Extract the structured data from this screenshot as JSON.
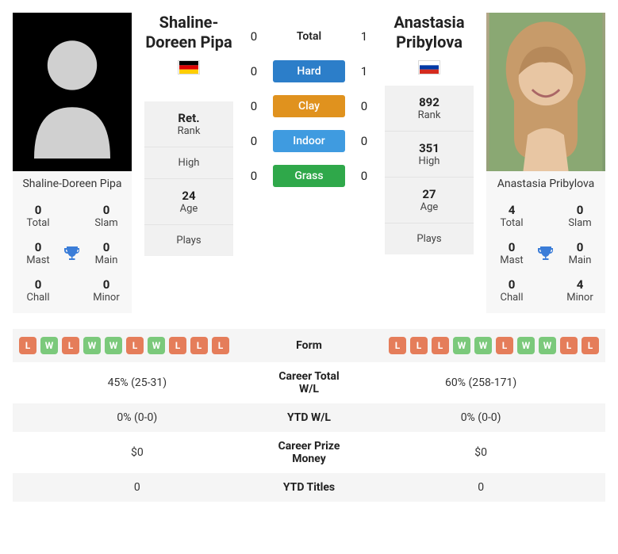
{
  "p1": {
    "name": "Shaline-Doreen Pipa",
    "flag_colors": [
      "#000000",
      "#dd0000",
      "#ffce00"
    ],
    "titles": {
      "total": {
        "v": "0",
        "l": "Total"
      },
      "slam": {
        "v": "0",
        "l": "Slam"
      },
      "mast": {
        "v": "0",
        "l": "Mast"
      },
      "main": {
        "v": "0",
        "l": "Main"
      },
      "chall": {
        "v": "0",
        "l": "Chall"
      },
      "minor": {
        "v": "0",
        "l": "Minor"
      }
    },
    "info": {
      "rank": {
        "v": "Ret.",
        "l": "Rank"
      },
      "high": {
        "v": "",
        "l": "High"
      },
      "age": {
        "v": "24",
        "l": "Age"
      },
      "plays": {
        "v": "",
        "l": "Plays"
      }
    },
    "form": [
      "L",
      "W",
      "L",
      "W",
      "W",
      "L",
      "W",
      "L",
      "L",
      "L"
    ],
    "career_wl": "45% (25-31)",
    "ytd_wl": "0% (0-0)",
    "prize": "$0",
    "ytd_titles": "0"
  },
  "p2": {
    "name": "Anastasia Pribylova",
    "flag_colors": [
      "#ffffff",
      "#0039a6",
      "#d52b1e"
    ],
    "titles": {
      "total": {
        "v": "4",
        "l": "Total"
      },
      "slam": {
        "v": "0",
        "l": "Slam"
      },
      "mast": {
        "v": "0",
        "l": "Mast"
      },
      "main": {
        "v": "0",
        "l": "Main"
      },
      "chall": {
        "v": "0",
        "l": "Chall"
      },
      "minor": {
        "v": "4",
        "l": "Minor"
      }
    },
    "info": {
      "rank": {
        "v": "892",
        "l": "Rank"
      },
      "high": {
        "v": "351",
        "l": "High"
      },
      "age": {
        "v": "27",
        "l": "Age"
      },
      "plays": {
        "v": "",
        "l": "Plays"
      }
    },
    "form": [
      "L",
      "L",
      "L",
      "W",
      "W",
      "L",
      "W",
      "W",
      "L",
      "L"
    ],
    "career_wl": "60% (258-171)",
    "ytd_wl": "0% (0-0)",
    "prize": "$0",
    "ytd_titles": "0"
  },
  "h2h": {
    "surfaces": [
      {
        "label": "Total",
        "p1": "0",
        "p2": "1",
        "color": "",
        "text": "#222"
      },
      {
        "label": "Hard",
        "p1": "0",
        "p2": "1",
        "color": "#2c7ec9"
      },
      {
        "label": "Clay",
        "p1": "0",
        "p2": "0",
        "color": "#e0921e"
      },
      {
        "label": "Indoor",
        "p1": "0",
        "p2": "0",
        "color": "#3f9be0"
      },
      {
        "label": "Grass",
        "p1": "0",
        "p2": "0",
        "color": "#2fa84a"
      }
    ]
  },
  "labels": {
    "form": "Form",
    "career_wl": "Career Total W/L",
    "ytd_wl": "YTD W/L",
    "prize": "Career Prize Money",
    "ytd_titles": "YTD Titles"
  },
  "colors": {
    "win": "#7bc97b",
    "loss": "#e57d5a",
    "trophy": "#3b7dd8"
  }
}
